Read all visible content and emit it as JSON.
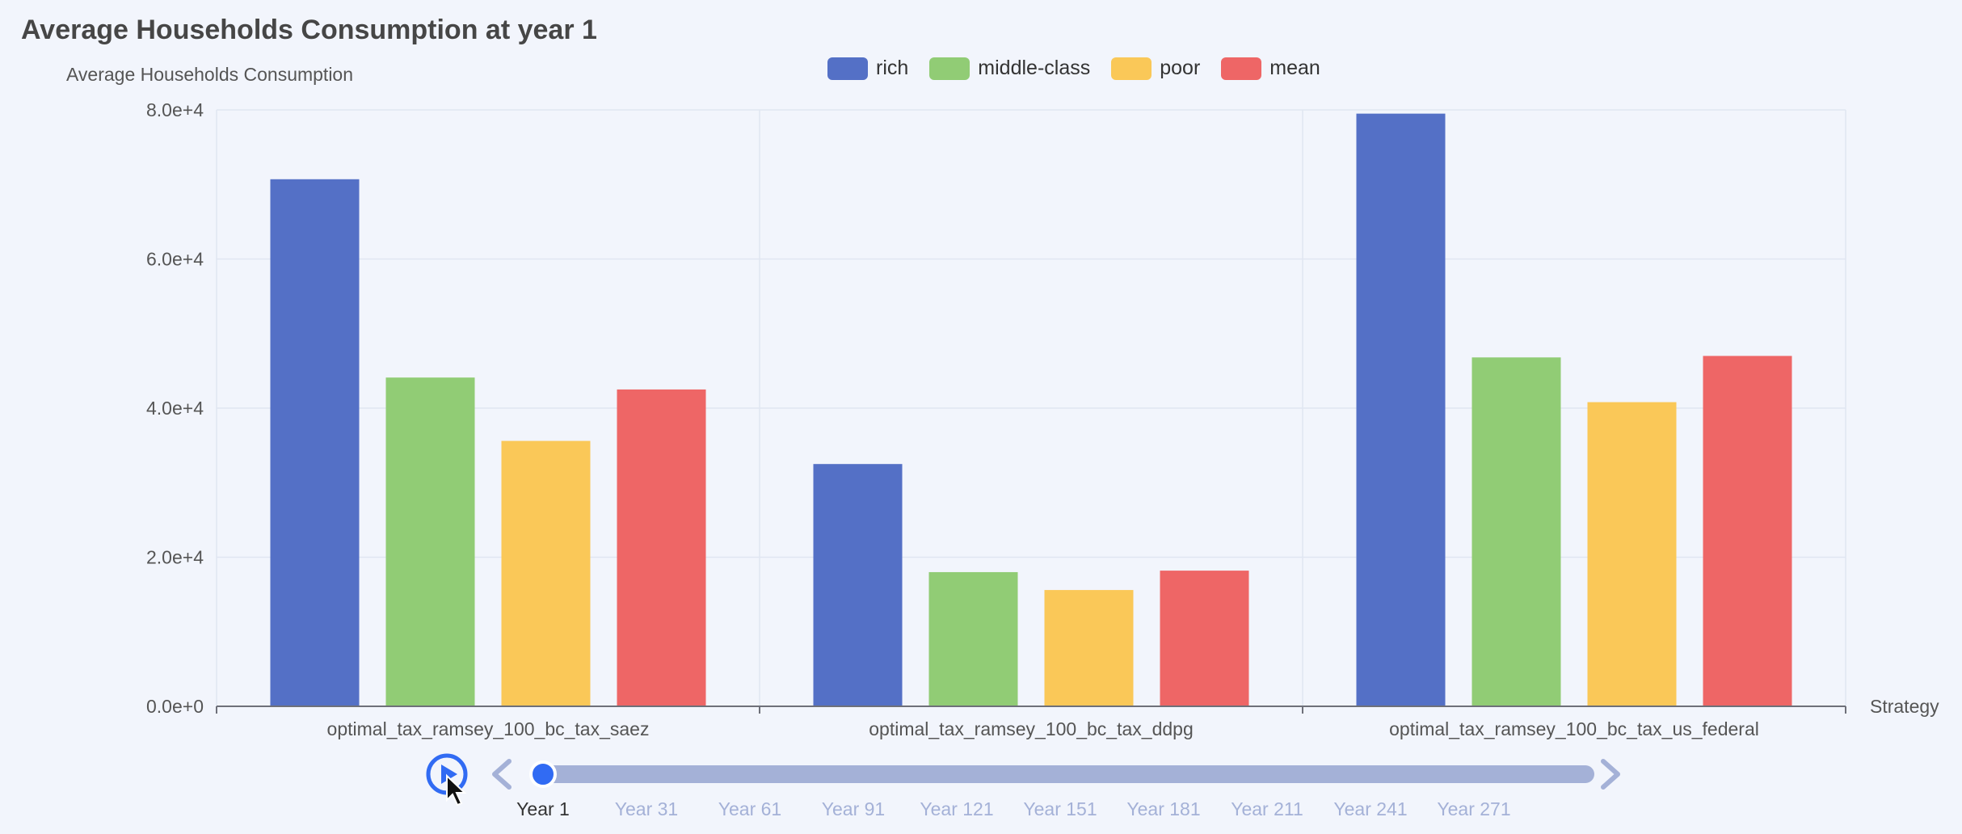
{
  "chart_data": {
    "type": "bar",
    "title": "Average Households Consumption at year 1",
    "ylabel": "Average Households Consumption",
    "xlabel": "Strategy",
    "categories": [
      "optimal_tax_ramsey_100_bc_tax_saez",
      "optimal_tax_ramsey_100_bc_tax_ddpg",
      "optimal_tax_ramsey_100_bc_tax_us_federal"
    ],
    "series": [
      {
        "name": "rich",
        "color": "#5470c6",
        "values": [
          70700,
          32500,
          79500
        ]
      },
      {
        "name": "middle-class",
        "color": "#91cc75",
        "values": [
          44100,
          18000,
          46800
        ]
      },
      {
        "name": "poor",
        "color": "#fac858",
        "values": [
          35600,
          15600,
          40800
        ]
      },
      {
        "name": "mean",
        "color": "#ee6666",
        "values": [
          42500,
          18200,
          47000
        ]
      }
    ],
    "ylim": [
      0,
      80000
    ],
    "yticks": [
      "0.0e+0",
      "2.0e+4",
      "4.0e+4",
      "6.0e+4",
      "8.0e+4"
    ],
    "grid": true,
    "legend_position": "top-center"
  },
  "timeline": {
    "labels": [
      "Year 1",
      "Year 31",
      "Year 61",
      "Year 91",
      "Year 121",
      "Year 151",
      "Year 181",
      "Year 211",
      "Year 241",
      "Year 271"
    ],
    "current_index": 0,
    "active_color": "#333333",
    "inactive_color": "#a4b1d7",
    "track_color": "#a4b1d7",
    "handle_color": "#316bf3",
    "play_icon": "play-icon",
    "prev_icon": "chevron-left-icon",
    "next_icon": "chevron-right-icon"
  }
}
